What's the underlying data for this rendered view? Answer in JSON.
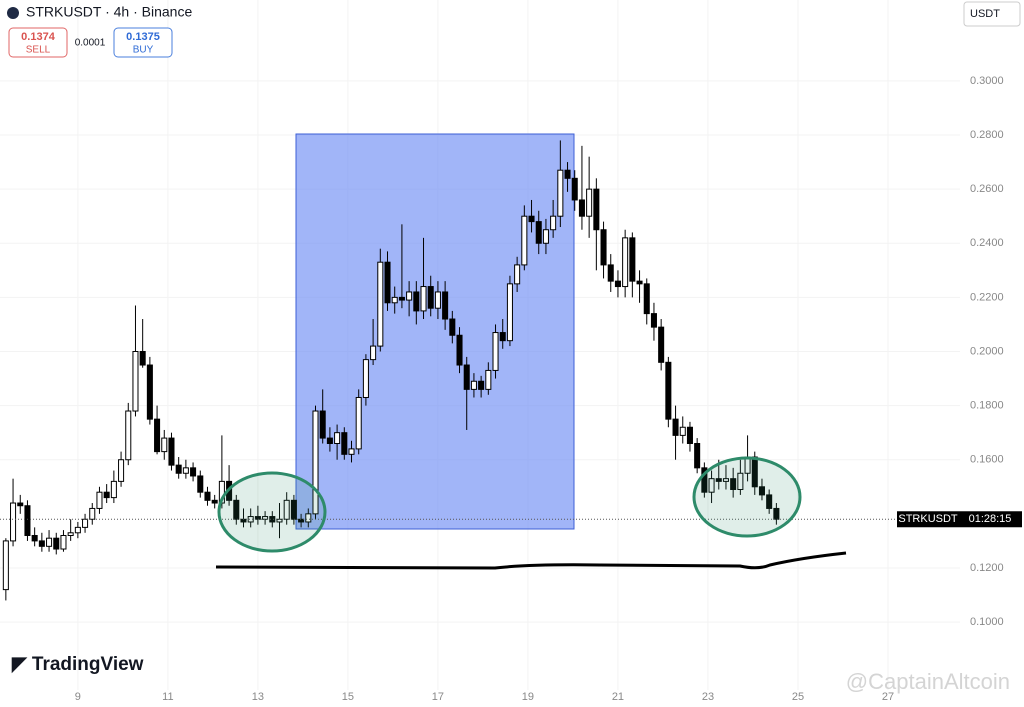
{
  "chart_data": {
    "type": "candlestick",
    "header": {
      "symbol": "STRKUSDT · 4h · Binance",
      "sell_price": "0.1374",
      "sell_label": "SELL",
      "spread": "0.0001",
      "buy_price": "0.1375",
      "buy_label": "BUY",
      "currency": "USDT"
    },
    "logo": "TradingView",
    "price_tag": "STRKUSDT",
    "countdown": "01:28:15",
    "watermark": "@CaptainAltcoin",
    "up_color": "#ffffff",
    "down_color": "#000000",
    "xlim": [
      7.27,
      28.6
    ],
    "ylim": [
      0.0749,
      0.3299
    ],
    "xticks": [
      9,
      11,
      13,
      15,
      17,
      19,
      21,
      23,
      25,
      27
    ],
    "yticks": [
      {
        "value": 0.1,
        "label": "0.1000"
      },
      {
        "value": 0.12,
        "label": "0.1200"
      },
      {
        "value": 0.16,
        "label": "0.1600"
      },
      {
        "value": 0.18,
        "label": "0.1800"
      },
      {
        "value": 0.2,
        "label": "0.2000"
      },
      {
        "value": 0.22,
        "label": "0.2200"
      },
      {
        "value": 0.24,
        "label": "0.2400"
      },
      {
        "value": 0.26,
        "label": "0.2600"
      },
      {
        "value": 0.28,
        "label": "0.2800"
      },
      {
        "value": 0.3,
        "label": "0.3000"
      }
    ],
    "x": [
      7.4,
      7.56,
      7.72,
      7.88,
      8.04,
      8.2,
      8.36,
      8.52,
      8.68,
      8.84,
      9.0,
      9.16,
      9.32,
      9.48,
      9.64,
      9.8,
      9.96,
      10.12,
      10.28,
      10.44,
      10.6,
      10.76,
      10.92,
      11.08,
      11.24,
      11.4,
      11.56,
      11.72,
      11.88,
      12.04,
      12.2,
      12.36,
      12.52,
      12.68,
      12.84,
      13.0,
      13.16,
      13.32,
      13.48,
      13.64,
      13.8,
      13.96,
      14.12,
      14.28,
      14.44,
      14.6,
      14.76,
      14.92,
      15.08,
      15.24,
      15.4,
      15.56,
      15.72,
      15.88,
      16.04,
      16.2,
      16.36,
      16.52,
      16.68,
      16.84,
      17.0,
      17.16,
      17.32,
      17.48,
      17.64,
      17.8,
      17.96,
      18.12,
      18.28,
      18.44,
      18.6,
      18.76,
      18.92,
      19.08,
      19.24,
      19.4,
      19.56,
      19.72,
      19.88,
      20.04,
      20.2,
      20.36,
      20.52,
      20.68,
      20.84,
      21.0,
      21.16,
      21.32,
      21.48,
      21.64,
      21.8,
      21.96,
      22.12,
      22.28,
      22.44,
      22.6,
      22.76,
      22.92,
      23.08,
      23.24,
      23.4,
      23.56,
      23.72,
      23.88,
      24.04,
      24.2,
      24.36,
      24.52
    ],
    "ohlc": [
      [
        0.112,
        0.131,
        0.108,
        0.13
      ],
      [
        0.13,
        0.153,
        0.128,
        0.144
      ],
      [
        0.144,
        0.147,
        0.14,
        0.143
      ],
      [
        0.143,
        0.145,
        0.13,
        0.132
      ],
      [
        0.132,
        0.135,
        0.128,
        0.13
      ],
      [
        0.13,
        0.133,
        0.126,
        0.128
      ],
      [
        0.128,
        0.134,
        0.126,
        0.131
      ],
      [
        0.131,
        0.133,
        0.125,
        0.127
      ],
      [
        0.127,
        0.134,
        0.126,
        0.132
      ],
      [
        0.132,
        0.138,
        0.13,
        0.133
      ],
      [
        0.133,
        0.137,
        0.131,
        0.135
      ],
      [
        0.135,
        0.14,
        0.133,
        0.138
      ],
      [
        0.138,
        0.144,
        0.136,
        0.142
      ],
      [
        0.142,
        0.15,
        0.14,
        0.148
      ],
      [
        0.148,
        0.151,
        0.144,
        0.146
      ],
      [
        0.146,
        0.156,
        0.144,
        0.152
      ],
      [
        0.152,
        0.163,
        0.15,
        0.16
      ],
      [
        0.16,
        0.181,
        0.158,
        0.178
      ],
      [
        0.178,
        0.217,
        0.176,
        0.2
      ],
      [
        0.2,
        0.212,
        0.194,
        0.195
      ],
      [
        0.195,
        0.198,
        0.173,
        0.175
      ],
      [
        0.175,
        0.18,
        0.162,
        0.163
      ],
      [
        0.163,
        0.171,
        0.16,
        0.168
      ],
      [
        0.168,
        0.17,
        0.156,
        0.158
      ],
      [
        0.158,
        0.161,
        0.153,
        0.155
      ],
      [
        0.155,
        0.16,
        0.153,
        0.157
      ],
      [
        0.157,
        0.159,
        0.152,
        0.154
      ],
      [
        0.154,
        0.156,
        0.146,
        0.148
      ],
      [
        0.148,
        0.15,
        0.143,
        0.145
      ],
      [
        0.145,
        0.147,
        0.142,
        0.144
      ],
      [
        0.144,
        0.169,
        0.142,
        0.152
      ],
      [
        0.152,
        0.158,
        0.143,
        0.145
      ],
      [
        0.145,
        0.147,
        0.136,
        0.138
      ],
      [
        0.138,
        0.142,
        0.135,
        0.137
      ],
      [
        0.137,
        0.142,
        0.135,
        0.139
      ],
      [
        0.139,
        0.143,
        0.136,
        0.138
      ],
      [
        0.138,
        0.141,
        0.136,
        0.139
      ],
      [
        0.139,
        0.141,
        0.135,
        0.137
      ],
      [
        0.137,
        0.144,
        0.131,
        0.138
      ],
      [
        0.138,
        0.148,
        0.136,
        0.145
      ],
      [
        0.145,
        0.147,
        0.136,
        0.138
      ],
      [
        0.138,
        0.14,
        0.135,
        0.137
      ],
      [
        0.137,
        0.142,
        0.135,
        0.14
      ],
      [
        0.14,
        0.18,
        0.138,
        0.178
      ],
      [
        0.178,
        0.186,
        0.166,
        0.168
      ],
      [
        0.168,
        0.172,
        0.163,
        0.166
      ],
      [
        0.166,
        0.173,
        0.16,
        0.17
      ],
      [
        0.17,
        0.172,
        0.16,
        0.162
      ],
      [
        0.162,
        0.167,
        0.159,
        0.164
      ],
      [
        0.164,
        0.186,
        0.162,
        0.183
      ],
      [
        0.183,
        0.199,
        0.18,
        0.197
      ],
      [
        0.197,
        0.212,
        0.195,
        0.202
      ],
      [
        0.202,
        0.238,
        0.2,
        0.233
      ],
      [
        0.233,
        0.237,
        0.215,
        0.218
      ],
      [
        0.218,
        0.224,
        0.214,
        0.22
      ],
      [
        0.22,
        0.247,
        0.216,
        0.219
      ],
      [
        0.219,
        0.226,
        0.213,
        0.222
      ],
      [
        0.222,
        0.226,
        0.21,
        0.215
      ],
      [
        0.215,
        0.242,
        0.212,
        0.224
      ],
      [
        0.224,
        0.228,
        0.213,
        0.216
      ],
      [
        0.216,
        0.226,
        0.212,
        0.222
      ],
      [
        0.222,
        0.226,
        0.208,
        0.212
      ],
      [
        0.212,
        0.215,
        0.203,
        0.206
      ],
      [
        0.206,
        0.209,
        0.192,
        0.195
      ],
      [
        0.195,
        0.198,
        0.171,
        0.186
      ],
      [
        0.186,
        0.192,
        0.183,
        0.189
      ],
      [
        0.189,
        0.191,
        0.183,
        0.186
      ],
      [
        0.186,
        0.196,
        0.184,
        0.193
      ],
      [
        0.193,
        0.21,
        0.19,
        0.207
      ],
      [
        0.207,
        0.212,
        0.201,
        0.204
      ],
      [
        0.204,
        0.228,
        0.202,
        0.225
      ],
      [
        0.225,
        0.235,
        0.222,
        0.232
      ],
      [
        0.232,
        0.254,
        0.23,
        0.25
      ],
      [
        0.25,
        0.256,
        0.244,
        0.248
      ],
      [
        0.248,
        0.252,
        0.236,
        0.24
      ],
      [
        0.24,
        0.249,
        0.236,
        0.245
      ],
      [
        0.245,
        0.256,
        0.242,
        0.25
      ],
      [
        0.25,
        0.278,
        0.246,
        0.267
      ],
      [
        0.267,
        0.27,
        0.259,
        0.264
      ],
      [
        0.264,
        0.267,
        0.252,
        0.256
      ],
      [
        0.256,
        0.276,
        0.245,
        0.25
      ],
      [
        0.25,
        0.272,
        0.242,
        0.26
      ],
      [
        0.26,
        0.264,
        0.23,
        0.245
      ],
      [
        0.245,
        0.248,
        0.227,
        0.232
      ],
      [
        0.232,
        0.236,
        0.222,
        0.226
      ],
      [
        0.226,
        0.23,
        0.22,
        0.224
      ],
      [
        0.224,
        0.245,
        0.22,
        0.242
      ],
      [
        0.242,
        0.244,
        0.22,
        0.226
      ],
      [
        0.226,
        0.23,
        0.218,
        0.225
      ],
      [
        0.225,
        0.227,
        0.21,
        0.214
      ],
      [
        0.214,
        0.218,
        0.204,
        0.209
      ],
      [
        0.209,
        0.212,
        0.193,
        0.196
      ],
      [
        0.196,
        0.198,
        0.172,
        0.175
      ],
      [
        0.175,
        0.18,
        0.16,
        0.169
      ],
      [
        0.169,
        0.176,
        0.166,
        0.172
      ],
      [
        0.172,
        0.174,
        0.163,
        0.166
      ],
      [
        0.166,
        0.168,
        0.155,
        0.157
      ],
      [
        0.157,
        0.159,
        0.146,
        0.148
      ],
      [
        0.148,
        0.156,
        0.144,
        0.153
      ],
      [
        0.153,
        0.16,
        0.149,
        0.152
      ],
      [
        0.152,
        0.158,
        0.149,
        0.153
      ],
      [
        0.153,
        0.157,
        0.146,
        0.149
      ],
      [
        0.149,
        0.16,
        0.147,
        0.155
      ],
      [
        0.155,
        0.169,
        0.152,
        0.161
      ],
      [
        0.161,
        0.163,
        0.147,
        0.15
      ],
      [
        0.15,
        0.153,
        0.145,
        0.147
      ],
      [
        0.147,
        0.149,
        0.14,
        0.142
      ],
      [
        0.142,
        0.144,
        0.136,
        0.138
      ]
    ]
  }
}
